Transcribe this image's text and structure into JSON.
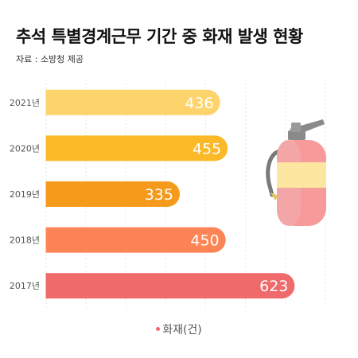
{
  "title": "추석 특별경계근무 기간 중 화재 발생 현황",
  "source": "자료 : 소방청 제공",
  "legend_label": "화재(건)",
  "colors": {
    "2021년": "#fdd36b",
    "2020년": "#fbb928",
    "2019년": "#f59a1a",
    "2018년": "#fd8454",
    "2017년": "#ef6a6a",
    "legend_dot": "#ef6a6a",
    "gridline": "#e6e6e6"
  },
  "icons": {
    "illustration": "fire-extinguisher-icon"
  },
  "chart_data": {
    "type": "bar",
    "orientation": "horizontal",
    "categories": [
      "2021년",
      "2020년",
      "2019년",
      "2018년",
      "2017년"
    ],
    "series": [
      {
        "name": "화재(건)",
        "values": [
          436,
          455,
          335,
          450,
          623
        ]
      }
    ],
    "xlim": [
      0,
      700
    ],
    "grid": true,
    "legend_position": "bottom"
  }
}
